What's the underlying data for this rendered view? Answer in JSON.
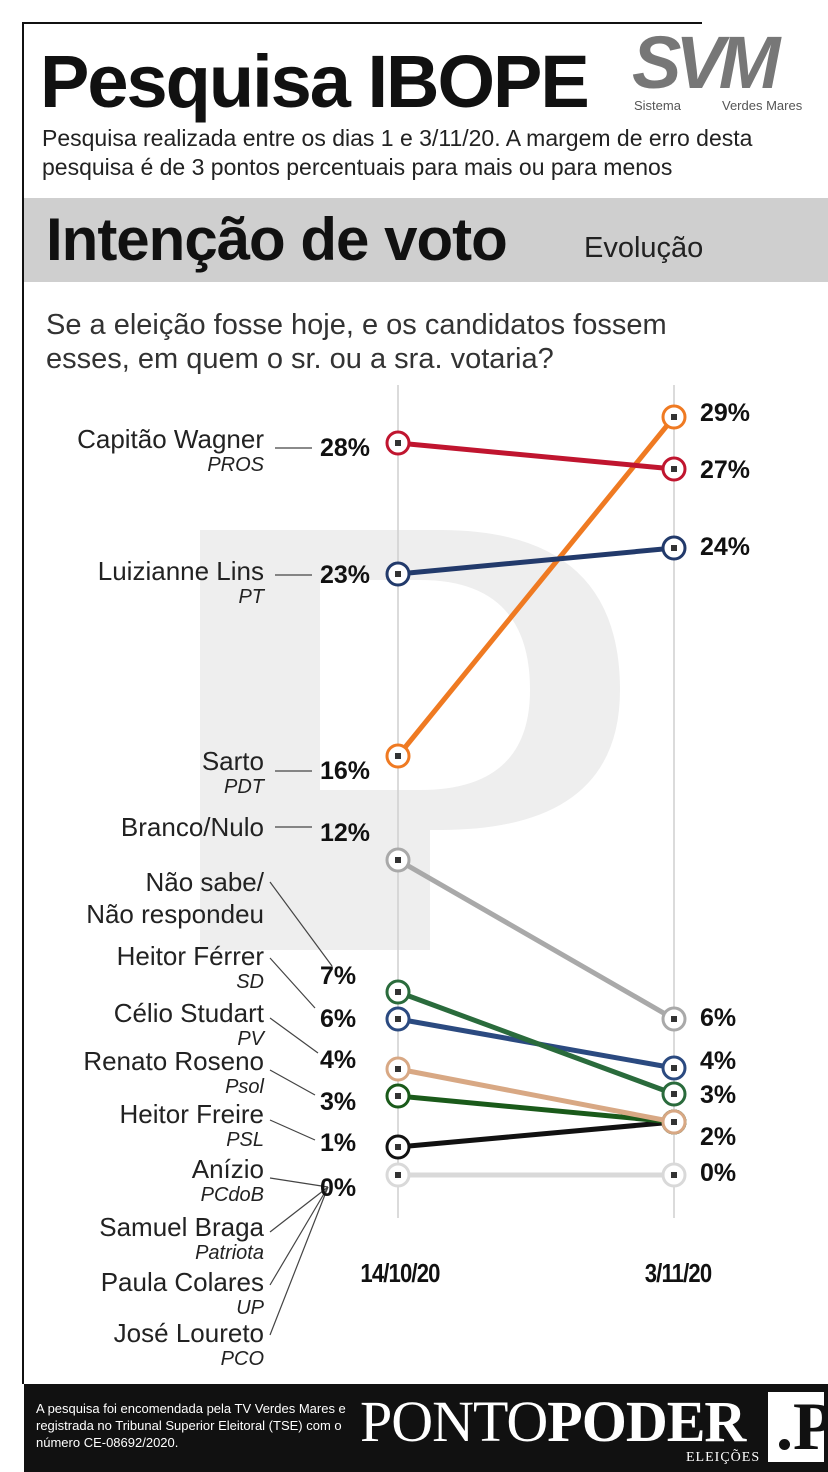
{
  "header": {
    "title": "Pesquisa IBOPE",
    "logo_letters": "SVM",
    "logo_sub1": "Sistema",
    "logo_sub2": "Verdes Mares",
    "subtitle": "Pesquisa realizada entre os dias 1 e 3/11/20. A margem de erro desta pesquisa é de 3 pontos percentuais para mais ou para menos"
  },
  "band": {
    "title": "Intenção de voto",
    "subtitle": "Evolução"
  },
  "question": "Se a eleição fosse hoje, e os candidatos fossem esses, em quem o sr. ou a sra. votaria?",
  "chart_data": {
    "type": "line",
    "title": "Intenção de voto",
    "subtitle": "Evolução",
    "x": [
      "14/10/20",
      "3/11/20"
    ],
    "unit": "%",
    "series": [
      {
        "name": "Capitão Wagner",
        "party": "PROS",
        "values": [
          28,
          27
        ],
        "color": "#c0152f"
      },
      {
        "name": "Luizianne Lins",
        "party": "PT",
        "values": [
          23,
          24
        ],
        "color": "#223a6b"
      },
      {
        "name": "Sarto",
        "party": "PDT",
        "values": [
          16,
          29
        ],
        "color": "#ef7a22"
      },
      {
        "name": "Branco/Nulo",
        "party": "",
        "values": [
          12,
          6
        ],
        "color": "#a9a9a9"
      },
      {
        "name": "Não sabe/ Não respondeu",
        "party": "",
        "values": [
          7,
          3
        ],
        "color": "#2a6b3c"
      },
      {
        "name": "Heitor Férrer",
        "party": "SD",
        "values": [
          6,
          4
        ],
        "color": "#2b4a80"
      },
      {
        "name": "Célio Studart",
        "party": "PV",
        "values": [
          4,
          2
        ],
        "color": "#d8a884"
      },
      {
        "name": "Renato Roseno",
        "party": "Psol",
        "values": [
          3,
          2
        ],
        "color": "#1a5a1a"
      },
      {
        "name": "Heitor Freire",
        "party": "PSL",
        "values": [
          1,
          2
        ],
        "color": "#111111"
      },
      {
        "name": "Anízio",
        "party": "PCdoB",
        "values": [
          0,
          0
        ],
        "color": "#d9d9d9"
      },
      {
        "name": "Samuel Braga",
        "party": "Patriota",
        "values": [
          0,
          0
        ],
        "color": "#d9d9d9"
      },
      {
        "name": "Paula Colares",
        "party": "UP",
        "values": [
          0,
          0
        ],
        "color": "#d9d9d9"
      },
      {
        "name": "José Loureto",
        "party": "PCO",
        "values": [
          0,
          0
        ],
        "color": "#d9d9d9"
      }
    ],
    "labels_left": [
      "28%",
      "23%",
      "16%",
      "12%",
      "7%",
      "6%",
      "4%",
      "3%",
      "1%",
      "0%"
    ],
    "labels_right": [
      "29%",
      "27%",
      "24%",
      "6%",
      "4%",
      "3%",
      "2%",
      "0%"
    ]
  },
  "footer": {
    "text": "A pesquisa foi encomendada pela TV Verdes Mares e registrada no Tribunal Superior Eleitoral (TSE) com o número CE-08692/2020.",
    "brand_light": "PONTO",
    "brand_bold": "PODER",
    "brand_sub": "ELEIÇÕES",
    "brand_icon": ".P"
  }
}
